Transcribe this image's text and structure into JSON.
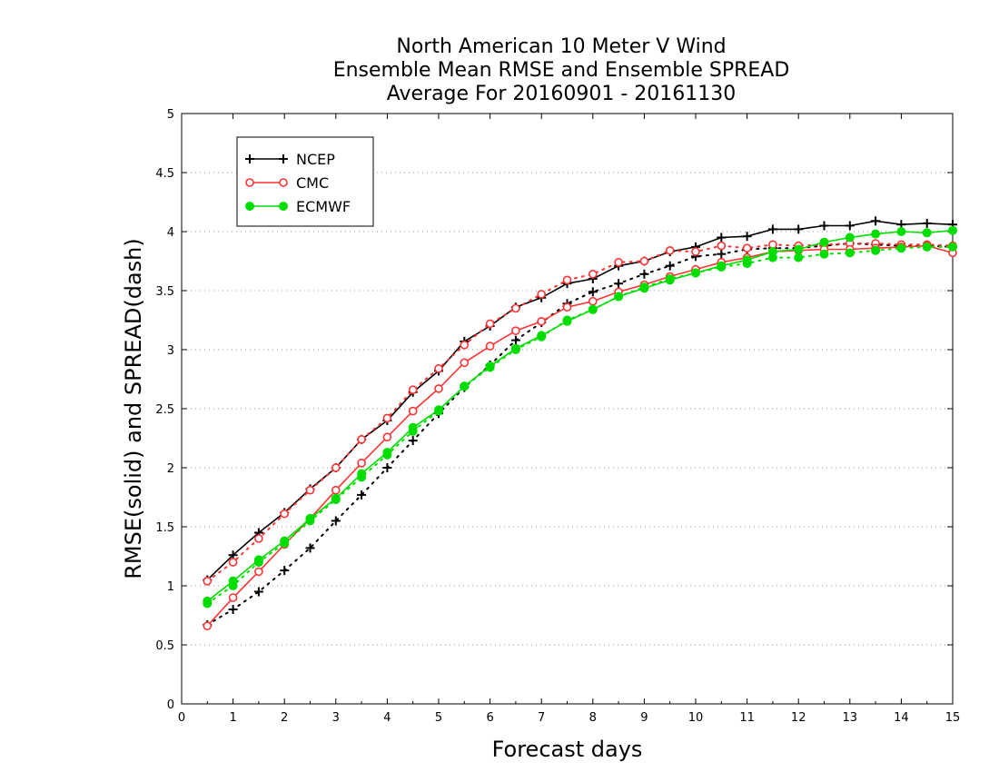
{
  "chart_data": {
    "type": "line",
    "title": [
      "North American 10 Meter V Wind",
      "Ensemble Mean RMSE and Ensemble SPREAD",
      "Average For 20160901 - 20161130"
    ],
    "xlabel": "Forecast days",
    "ylabel": "RMSE(solid) and SPREAD(dash)",
    "xlim": [
      0,
      15
    ],
    "ylim": [
      0,
      5
    ],
    "xticks": [
      "0",
      "1",
      "2",
      "3",
      "4",
      "5",
      "6",
      "7",
      "8",
      "9",
      "10",
      "11",
      "12",
      "13",
      "14",
      "15"
    ],
    "yticks": [
      "0",
      "0.5",
      "1",
      "1.5",
      "2",
      "2.5",
      "3",
      "3.5",
      "4",
      "4.5",
      "5"
    ],
    "grid": "horizontal dotted",
    "legend_position": "top-left",
    "x": [
      0.5,
      1,
      1.5,
      2,
      2.5,
      3,
      3.5,
      4,
      4.5,
      5,
      5.5,
      6,
      6.5,
      7,
      7.5,
      8,
      8.5,
      9,
      9.5,
      10,
      10.5,
      11,
      11.5,
      12,
      12.5,
      13,
      13.5,
      14,
      14.5,
      15
    ],
    "series": [
      {
        "name": "NCEP",
        "color": "#000000",
        "marker": "plus",
        "rmse": [
          1.05,
          1.26,
          1.45,
          1.62,
          1.82,
          2.0,
          2.24,
          2.4,
          2.64,
          2.82,
          3.07,
          3.2,
          3.36,
          3.44,
          3.56,
          3.6,
          3.71,
          3.75,
          3.83,
          3.87,
          3.95,
          3.96,
          4.02,
          4.02,
          4.05,
          4.05,
          4.09,
          4.06,
          4.07,
          4.06
        ],
        "spread": [
          0.67,
          0.8,
          0.95,
          1.13,
          1.32,
          1.55,
          1.77,
          2.0,
          2.23,
          2.46,
          2.68,
          2.87,
          3.08,
          3.23,
          3.39,
          3.49,
          3.56,
          3.64,
          3.71,
          3.79,
          3.81,
          3.85,
          3.86,
          3.86,
          3.88,
          3.9,
          3.89,
          3.88,
          3.88,
          3.87
        ]
      },
      {
        "name": "CMC",
        "color": "#ff3333",
        "marker": "open-circle",
        "rmse": [
          0.66,
          0.9,
          1.12,
          1.35,
          1.57,
          1.81,
          2.04,
          2.26,
          2.48,
          2.67,
          2.89,
          3.03,
          3.16,
          3.24,
          3.36,
          3.41,
          3.49,
          3.55,
          3.62,
          3.68,
          3.74,
          3.78,
          3.83,
          3.84,
          3.85,
          3.85,
          3.86,
          3.87,
          3.88,
          3.82
        ],
        "spread": [
          1.04,
          1.2,
          1.4,
          1.61,
          1.81,
          2.0,
          2.24,
          2.42,
          2.66,
          2.84,
          3.04,
          3.22,
          3.35,
          3.47,
          3.59,
          3.64,
          3.74,
          3.75,
          3.84,
          3.83,
          3.88,
          3.86,
          3.89,
          3.88,
          3.89,
          3.9,
          3.9,
          3.89,
          3.89,
          3.88
        ]
      },
      {
        "name": "ECMWF",
        "color": "#00dd00",
        "marker": "filled-circle",
        "rmse": [
          0.87,
          1.04,
          1.22,
          1.38,
          1.57,
          1.74,
          1.95,
          2.13,
          2.34,
          2.49,
          2.69,
          2.86,
          3.01,
          3.12,
          3.24,
          3.34,
          3.45,
          3.52,
          3.59,
          3.65,
          3.71,
          3.76,
          3.83,
          3.85,
          3.91,
          3.95,
          3.98,
          4.0,
          3.99,
          4.01
        ],
        "spread": [
          0.85,
          1.0,
          1.2,
          1.36,
          1.55,
          1.73,
          1.92,
          2.11,
          2.31,
          2.48,
          2.69,
          2.85,
          3.0,
          3.11,
          3.25,
          3.34,
          3.45,
          3.53,
          3.6,
          3.65,
          3.7,
          3.73,
          3.78,
          3.78,
          3.81,
          3.82,
          3.84,
          3.86,
          3.87,
          3.87
        ]
      }
    ]
  }
}
